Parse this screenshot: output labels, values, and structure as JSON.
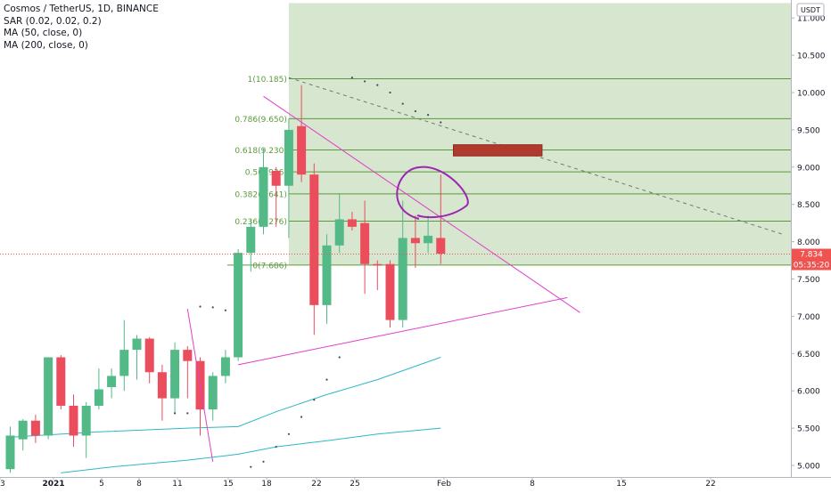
{
  "legend": {
    "title": "Cosmos / TetherUS, 1D, BINANCE",
    "sar": "SAR (0.02, 0.02, 0.2)",
    "ma50": "MA (50, close, 0)",
    "ma200": "MA (200, close, 0)"
  },
  "currency_badge": "USDT",
  "price_tag": {
    "price": "7.834",
    "countdown": "05:35:20",
    "color": "#ef5350"
  },
  "colors": {
    "up": "#53b987",
    "down": "#eb4d5c",
    "fib": "#5b9a3c",
    "trend": "#e040c8",
    "ma": "#2db7c6",
    "zone": "#d6e6cf",
    "box": "#b03a2e",
    "circle": "#9c27b0"
  },
  "chart_data": {
    "type": "candlestick",
    "symbol": "ATOM/USDT",
    "timeframe": "1D",
    "x_ticks": [
      "3",
      "2021",
      "5",
      "8",
      "11",
      "15",
      "18",
      "22",
      "25",
      "Feb",
      "8",
      "15",
      "22"
    ],
    "y_ticks": [
      "5.000",
      "5.500",
      "6.000",
      "6.500",
      "7.000",
      "7.500",
      "8.000",
      "8.500",
      "9.000",
      "9.500",
      "10.000",
      "10.500",
      "11.000"
    ],
    "ylim": [
      4.95,
      11.2
    ],
    "candles": [
      {
        "date": "2020-12-28",
        "o": 4.95,
        "h": 5.52,
        "l": 4.9,
        "c": 5.4
      },
      {
        "date": "2020-12-29",
        "o": 5.35,
        "h": 5.62,
        "l": 5.2,
        "c": 5.6
      },
      {
        "date": "2020-12-30",
        "o": 5.6,
        "h": 5.68,
        "l": 5.3,
        "c": 5.4
      },
      {
        "date": "2020-12-31",
        "o": 5.4,
        "h": 6.45,
        "l": 5.35,
        "c": 6.45
      },
      {
        "date": "2021-01-01",
        "o": 6.45,
        "h": 6.48,
        "l": 5.75,
        "c": 5.8
      },
      {
        "date": "2021-01-02",
        "o": 5.8,
        "h": 5.95,
        "l": 5.25,
        "c": 5.4
      },
      {
        "date": "2021-01-03",
        "o": 5.4,
        "h": 5.85,
        "l": 5.1,
        "c": 5.8
      },
      {
        "date": "2021-01-04",
        "o": 5.8,
        "h": 6.3,
        "l": 5.75,
        "c": 6.02
      },
      {
        "date": "2021-01-05",
        "o": 6.05,
        "h": 6.3,
        "l": 5.9,
        "c": 6.2
      },
      {
        "date": "2021-01-06",
        "o": 6.2,
        "h": 6.95,
        "l": 6.0,
        "c": 6.55
      },
      {
        "date": "2021-01-07",
        "o": 6.55,
        "h": 6.75,
        "l": 6.15,
        "c": 6.7
      },
      {
        "date": "2021-01-08",
        "o": 6.7,
        "h": 6.72,
        "l": 6.1,
        "c": 6.25
      },
      {
        "date": "2021-01-09",
        "o": 6.25,
        "h": 6.35,
        "l": 5.6,
        "c": 5.9
      },
      {
        "date": "2021-01-10",
        "o": 5.9,
        "h": 6.65,
        "l": 5.7,
        "c": 6.55
      },
      {
        "date": "2021-01-11",
        "o": 6.55,
        "h": 6.6,
        "l": 5.9,
        "c": 6.4
      },
      {
        "date": "2021-01-12",
        "o": 6.4,
        "h": 6.45,
        "l": 5.4,
        "c": 5.75
      },
      {
        "date": "2021-01-13",
        "o": 5.75,
        "h": 6.25,
        "l": 5.6,
        "c": 6.2
      },
      {
        "date": "2021-01-14",
        "o": 6.2,
        "h": 6.55,
        "l": 6.1,
        "c": 6.45
      },
      {
        "date": "2021-01-15",
        "o": 6.45,
        "h": 7.9,
        "l": 6.4,
        "c": 7.85
      },
      {
        "date": "2021-01-16",
        "o": 7.85,
        "h": 8.3,
        "l": 7.6,
        "c": 8.2
      },
      {
        "date": "2021-01-17",
        "o": 8.2,
        "h": 9.25,
        "l": 8.1,
        "c": 9.0
      },
      {
        "date": "2021-01-18",
        "o": 8.95,
        "h": 9.0,
        "l": 8.2,
        "c": 8.75
      },
      {
        "date": "2021-01-19",
        "o": 8.75,
        "h": 9.65,
        "l": 8.05,
        "c": 9.5
      },
      {
        "date": "2021-01-20",
        "o": 9.55,
        "h": 10.1,
        "l": 8.8,
        "c": 8.9
      },
      {
        "date": "2021-01-21",
        "o": 8.9,
        "h": 9.05,
        "l": 6.75,
        "c": 7.15
      },
      {
        "date": "2021-01-22",
        "o": 7.15,
        "h": 8.1,
        "l": 6.9,
        "c": 7.95
      },
      {
        "date": "2021-01-23",
        "o": 7.95,
        "h": 8.65,
        "l": 7.85,
        "c": 8.3
      },
      {
        "date": "2021-01-24",
        "o": 8.3,
        "h": 8.4,
        "l": 8.15,
        "c": 8.2
      },
      {
        "date": "2021-01-25",
        "o": 8.25,
        "h": 8.55,
        "l": 7.3,
        "c": 7.7
      },
      {
        "date": "2021-01-26",
        "o": 7.7,
        "h": 7.75,
        "l": 7.35,
        "c": 7.68
      },
      {
        "date": "2021-01-27",
        "o": 7.7,
        "h": 7.75,
        "l": 6.85,
        "c": 6.95
      },
      {
        "date": "2021-01-28",
        "o": 6.95,
        "h": 8.55,
        "l": 6.85,
        "c": 8.05
      },
      {
        "date": "2021-01-29",
        "o": 8.05,
        "h": 8.35,
        "l": 7.65,
        "c": 7.98
      },
      {
        "date": "2021-01-30",
        "o": 7.98,
        "h": 8.35,
        "l": 7.85,
        "c": 8.08
      },
      {
        "date": "2021-01-31",
        "o": 8.05,
        "h": 8.9,
        "l": 7.7,
        "c": 7.84
      }
    ],
    "sar_points": [
      {
        "date": "2021-01-10",
        "v": 5.7
      },
      {
        "date": "2021-01-11",
        "v": 5.7
      },
      {
        "date": "2021-01-12",
        "v": 7.13
      },
      {
        "date": "2021-01-13",
        "v": 7.12
      },
      {
        "date": "2021-01-14",
        "v": 7.08
      },
      {
        "date": "2021-01-16",
        "v": 4.98
      },
      {
        "date": "2021-01-17",
        "v": 5.05
      },
      {
        "date": "2021-01-18",
        "v": 5.25
      },
      {
        "date": "2021-01-19",
        "v": 5.42
      },
      {
        "date": "2021-01-20",
        "v": 5.65
      },
      {
        "date": "2021-01-21",
        "v": 5.88
      },
      {
        "date": "2021-01-22",
        "v": 6.15
      },
      {
        "date": "2021-01-23",
        "v": 6.45
      },
      {
        "date": "2021-01-24",
        "v": 10.2
      },
      {
        "date": "2021-01-25",
        "v": 10.15
      },
      {
        "date": "2021-01-26",
        "v": 10.1
      },
      {
        "date": "2021-01-27",
        "v": 10.0
      },
      {
        "date": "2021-01-28",
        "v": 9.85
      },
      {
        "date": "2021-01-29",
        "v": 9.75
      },
      {
        "date": "2021-01-30",
        "v": 9.7
      },
      {
        "date": "2021-01-31",
        "v": 9.6
      }
    ],
    "ma50": [
      {
        "date": "2020-12-28",
        "v": 5.38
      },
      {
        "date": "2021-01-04",
        "v": 5.45
      },
      {
        "date": "2021-01-11",
        "v": 5.5
      },
      {
        "date": "2021-01-15",
        "v": 5.52
      },
      {
        "date": "2021-01-18",
        "v": 5.72
      },
      {
        "date": "2021-01-22",
        "v": 5.95
      },
      {
        "date": "2021-01-26",
        "v": 6.15
      },
      {
        "date": "2021-01-31",
        "v": 6.45
      }
    ],
    "ma200": [
      {
        "date": "2021-01-01",
        "v": 4.9
      },
      {
        "date": "2021-01-05",
        "v": 4.98
      },
      {
        "date": "2021-01-11",
        "v": 5.07
      },
      {
        "date": "2021-01-15",
        "v": 5.15
      },
      {
        "date": "2021-01-18",
        "v": 5.25
      },
      {
        "date": "2021-01-22",
        "v": 5.33
      },
      {
        "date": "2021-01-26",
        "v": 5.42
      },
      {
        "date": "2021-01-31",
        "v": 5.5
      }
    ],
    "fibonacci": [
      {
        "label": "1(10.185)",
        "value": 10.185
      },
      {
        "label": "0.786(9.650)",
        "value": 9.65
      },
      {
        "label": "0.618(9.230)",
        "value": 9.23
      },
      {
        "label": "0.5(8.936)",
        "value": 8.936
      },
      {
        "label": "0.382(8.641)",
        "value": 8.641
      },
      {
        "label": "0.236(8.276)",
        "value": 8.276
      },
      {
        "label": "0(7.686)",
        "value": 7.686
      }
    ],
    "drawings": {
      "descending_trendline": {
        "from": {
          "date": "2021-01-17",
          "v": 9.95
        },
        "to": {
          "date": "2021-02-11",
          "v": 7.05
        }
      },
      "ascending_trendline": {
        "from": {
          "date": "2021-01-15",
          "v": 6.35
        },
        "to": {
          "date": "2021-02-10",
          "v": 7.25
        }
      },
      "spike_line": {
        "from": {
          "date": "2021-01-11",
          "v": 7.1
        },
        "to": {
          "date": "2021-01-13",
          "v": 5.05
        }
      },
      "dashed_line": {
        "from": {
          "date": "2021-01-19",
          "v": 10.2
        },
        "to": {
          "date": "2021-02-27",
          "v": 8.1
        }
      },
      "target_box": {
        "from_date": "2021-02-01",
        "to_date": "2021-02-08",
        "top": 9.3,
        "bottom": 9.15
      },
      "fib_zone": {
        "from_date": "2021-01-19",
        "top": 11.2,
        "bottom": 7.686
      }
    }
  }
}
